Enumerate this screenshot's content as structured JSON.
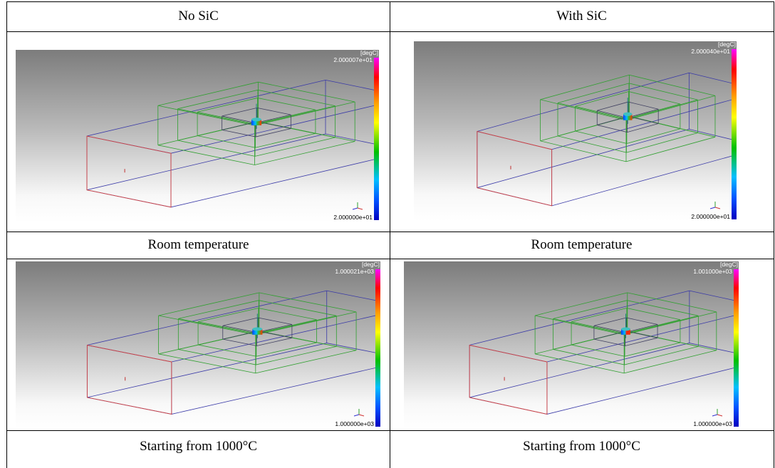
{
  "table": {
    "header": [
      "No SiC",
      "With SiC"
    ],
    "panels": [
      [
        {
          "unit": "[degC]",
          "max": "2.000007e+01",
          "min": "2.000000e+01"
        },
        {
          "unit": "[degC]",
          "max": "2.000040e+01",
          "min": "2.000000e+01"
        }
      ],
      [
        {
          "unit": "[degC]",
          "max": "1.000021e+03",
          "min": "1.000000e+03"
        },
        {
          "unit": "[degC]",
          "max": "1.001000e+03",
          "min": "1.000000e+03"
        }
      ]
    ],
    "captions": [
      [
        "Room temperature",
        "Room temperature"
      ],
      [
        "Starting from 1000°C",
        "Starting from 1000°C"
      ]
    ]
  }
}
